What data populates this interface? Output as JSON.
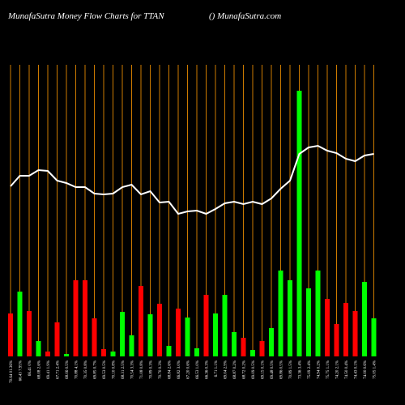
{
  "chart_data": {
    "type": "bar",
    "title": "MunafaSutra  Money Flow  Charts for TTAN",
    "subtitle": "() MunafaSutra.com",
    "categories": [
      "70.64 01.36%",
      "66.43 7.95%",
      "66.41 0%",
      "68.08 2.6%",
      "69.41 1.9%",
      "67.71 2.4%",
      "68.06 0.5%",
      "70.88 4.1%",
      "70.35 0.8%",
      "69.85 0.7%",
      "69.53 0.5%",
      "70.10 0.8%",
      "68.31 2.5%",
      "70.54 3.3%",
      "71.08 0.8%",
      "70.89 0.3%",
      "70.70 0.3%",
      "68.84 2.6%",
      "66.82 3.0%",
      "67.20 0.6%",
      "66.53 1.0%",
      "66.36 0.3%",
      "6.71 1.1%",
      "69.04 2.9%",
      "68.87 0.2%",
      "68.72 0.2%",
      "69.09 0.5%",
      "69.15 0.1%",
      "69.48 0.5%",
      "69.86 0.5%",
      "70.89 1.5%",
      "73.36 3.4%",
      "75.09 2.4%",
      "74.94 0.2%",
      "75.75 1.1%",
      "74.20 2.1%",
      "74.50 0.4%",
      "74.43 0.1%",
      "74.00 0.6%",
      "75.05 1.4%"
    ],
    "values": [
      53,
      80,
      56,
      19,
      6,
      42,
      3,
      94,
      94,
      47,
      9,
      6,
      55,
      26,
      87,
      52,
      65,
      13,
      59,
      48,
      10,
      76,
      53,
      76,
      30,
      23,
      8,
      19,
      35,
      106,
      94,
      328,
      84,
      106,
      71,
      40,
      66,
      56,
      92,
      47
    ],
    "bar_colors": [
      "#ff0000",
      "#00ff00",
      "#ff0000",
      "#00ff00",
      "#ff0000",
      "#ff0000",
      "#00ff00",
      "#ff0000",
      "#ff0000",
      "#ff0000",
      "#ff0000",
      "#00ff00",
      "#00ff00",
      "#00ff00",
      "#ff0000",
      "#00ff00",
      "#ff0000",
      "#00ff00",
      "#ff0000",
      "#00ff00",
      "#00ff00",
      "#ff0000",
      "#00ff00",
      "#00ff00",
      "#00ff00",
      "#ff0000",
      "#00ff00",
      "#ff0000",
      "#00ff00",
      "#00ff00",
      "#00ff00",
      "#00ff00",
      "#00ff00",
      "#00ff00",
      "#ff0000",
      "#ff0000",
      "#ff0000",
      "#ff0000",
      "#00ff00",
      "#00ff00"
    ],
    "line_values": [
      210,
      223,
      223,
      230,
      229,
      217,
      214,
      209,
      209,
      201,
      200,
      201,
      209,
      212,
      200,
      204,
      190,
      191,
      176,
      179,
      180,
      176,
      182,
      189,
      191,
      188,
      191,
      188,
      195,
      207,
      217,
      250,
      258,
      260,
      254,
      251,
      244,
      241,
      248,
      250
    ],
    "line_color": "#ffffff",
    "grid_color": "#cc7a00",
    "ylim": [
      0,
      340
    ]
  }
}
